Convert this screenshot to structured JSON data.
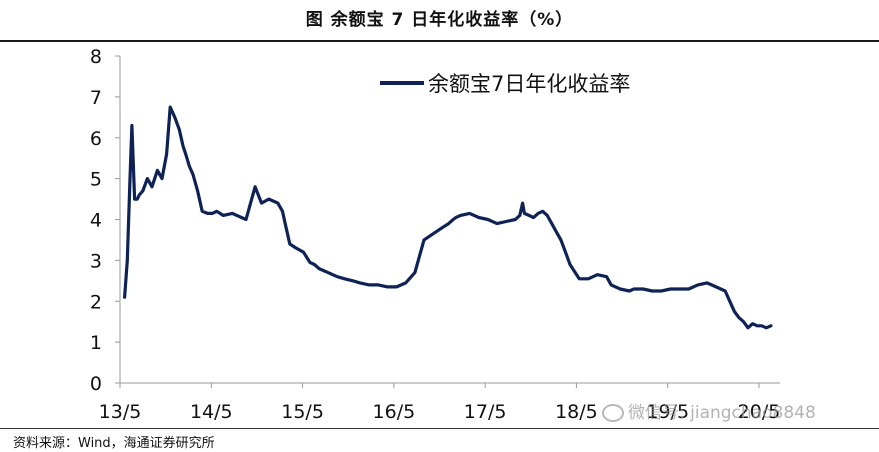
{
  "figure_title": "图  余额宝 7 日年化收益率（%）",
  "source_text": "资料来源：Wind，海通证券研究所",
  "watermark_text": "微信号: jiangchao8848",
  "colors": {
    "line": "#0f2256",
    "axis": "#999999",
    "text": "#111111"
  },
  "chart_data": {
    "type": "line",
    "title": "",
    "xlabel": "",
    "ylabel": "",
    "ylim": [
      0,
      8
    ],
    "yticks": [
      0,
      1,
      2,
      3,
      4,
      5,
      6,
      7,
      8
    ],
    "x_tick_labels": [
      "13/5",
      "14/5",
      "15/5",
      "16/5",
      "17/5",
      "18/5",
      "19/5",
      "20/5"
    ],
    "xlim": [
      2013.37,
      2020.6
    ],
    "grid": false,
    "legend_position": "top-center",
    "series": [
      {
        "name": "余额宝7日年化收益率",
        "x": [
          2013.42,
          2013.45,
          2013.48,
          2013.5,
          2013.53,
          2013.56,
          2013.58,
          2013.62,
          2013.67,
          2013.72,
          2013.78,
          2013.83,
          2013.88,
          2013.92,
          2013.97,
          2014.02,
          2014.06,
          2014.09,
          2014.13,
          2014.17,
          2014.22,
          2014.27,
          2014.33,
          2014.38,
          2014.43,
          2014.5,
          2014.6,
          2014.75,
          2014.85,
          2014.92,
          2015.0,
          2015.1,
          2015.15,
          2015.18,
          2015.23,
          2015.3,
          2015.38,
          2015.45,
          2015.5,
          2015.55,
          2015.6,
          2015.65,
          2015.7,
          2015.75,
          2015.83,
          2015.92,
          2016.0,
          2016.1,
          2016.2,
          2016.3,
          2016.4,
          2016.5,
          2016.6,
          2016.7,
          2016.8,
          2016.9,
          2016.97,
          2017.02,
          2017.05,
          2017.1,
          2017.2,
          2017.3,
          2017.4,
          2017.5,
          2017.6,
          2017.7,
          2017.75,
          2017.78,
          2017.8,
          2017.85,
          2017.9,
          2017.95,
          2018.0,
          2018.05,
          2018.1,
          2018.15,
          2018.2,
          2018.25,
          2018.3,
          2018.4,
          2018.5,
          2018.6,
          2018.7,
          2018.75,
          2018.85,
          2018.95,
          2019.0,
          2019.05,
          2019.1,
          2019.2,
          2019.3,
          2019.4,
          2019.5,
          2019.6,
          2019.7,
          2019.8,
          2019.9,
          2020.0,
          2020.05,
          2020.1,
          2020.15,
          2020.2,
          2020.25,
          2020.3,
          2020.35,
          2020.4,
          2020.45,
          2020.5
        ],
        "values": [
          2.1,
          3.0,
          5.0,
          6.3,
          4.5,
          4.5,
          4.6,
          4.7,
          5.0,
          4.8,
          5.2,
          5.0,
          5.6,
          6.75,
          6.5,
          6.2,
          5.8,
          5.6,
          5.3,
          5.1,
          4.7,
          4.2,
          4.15,
          4.15,
          4.2,
          4.1,
          4.15,
          4.0,
          4.8,
          4.4,
          4.5,
          4.4,
          4.2,
          3.9,
          3.4,
          3.3,
          3.2,
          2.95,
          2.9,
          2.8,
          2.75,
          2.7,
          2.65,
          2.6,
          2.55,
          2.5,
          2.45,
          2.4,
          2.4,
          2.35,
          2.35,
          2.45,
          2.7,
          3.5,
          3.65,
          3.8,
          3.9,
          4.0,
          4.05,
          4.1,
          4.15,
          4.05,
          4.0,
          3.9,
          3.95,
          4.0,
          4.1,
          4.4,
          4.15,
          4.1,
          4.05,
          4.15,
          4.2,
          4.1,
          3.9,
          3.7,
          3.5,
          3.2,
          2.9,
          2.55,
          2.55,
          2.65,
          2.6,
          2.4,
          2.3,
          2.25,
          2.3,
          2.3,
          2.3,
          2.25,
          2.25,
          2.3,
          2.3,
          2.3,
          2.4,
          2.45,
          2.35,
          2.25,
          2.0,
          1.75,
          1.6,
          1.5,
          1.35,
          1.45,
          1.4,
          1.4,
          1.35,
          1.4
        ]
      }
    ]
  }
}
